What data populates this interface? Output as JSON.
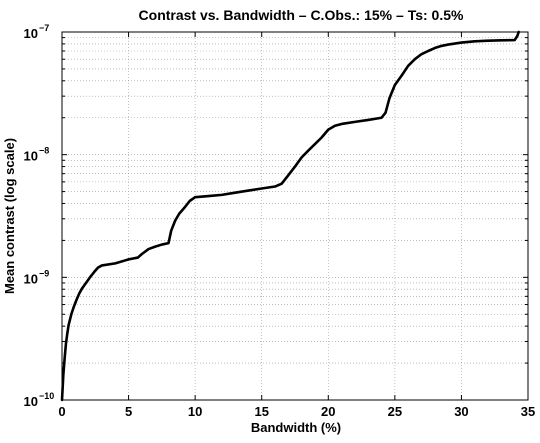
{
  "chart_data": {
    "type": "line",
    "title": "Contrast vs. Bandwidth – C.Obs.: 15% – Ts: 0.5%",
    "xlabel": "Bandwidth (%)",
    "ylabel": "Mean contrast (log scale)",
    "xlim": [
      0,
      35
    ],
    "ylim": [
      1e-10,
      1e-07
    ],
    "yscale": "log",
    "grid": true,
    "x_ticks": [
      {
        "value": 0,
        "label": "0"
      },
      {
        "value": 5,
        "label": "5"
      },
      {
        "value": 10,
        "label": "10"
      },
      {
        "value": 15,
        "label": "15"
      },
      {
        "value": 20,
        "label": "20"
      },
      {
        "value": 25,
        "label": "25"
      },
      {
        "value": 30,
        "label": "30"
      },
      {
        "value": 35,
        "label": "35"
      }
    ],
    "y_ticks": [
      {
        "value": 1e-10,
        "base": "10",
        "exp": "−10"
      },
      {
        "value": 1e-09,
        "base": "10",
        "exp": "−9"
      },
      {
        "value": 1e-08,
        "base": "10",
        "exp": "−8"
      },
      {
        "value": 1e-07,
        "base": "10",
        "exp": "−7"
      }
    ],
    "series": [
      {
        "color": "#000000",
        "x": [
          0.0,
          0.1,
          0.2,
          0.3,
          0.4,
          0.5,
          0.7,
          0.9,
          1.1,
          1.3,
          1.5,
          1.8,
          2.1,
          2.4,
          2.7,
          3.0,
          4.0,
          5.0,
          5.7,
          6.0,
          6.5,
          7.0,
          7.5,
          8.0,
          8.2,
          8.5,
          8.8,
          9.2,
          9.6,
          10.0,
          11.0,
          12.0,
          13.0,
          14.0,
          15.0,
          16.0,
          16.5,
          17.0,
          17.5,
          18.0,
          18.5,
          19.0,
          19.5,
          20.0,
          20.5,
          21.0,
          22.0,
          23.0,
          24.0,
          24.3,
          24.6,
          25.0,
          25.5,
          26.0,
          26.5,
          27.0,
          27.5,
          28.0,
          28.5,
          29.0,
          30.0,
          31.0,
          32.0,
          33.0,
          34.0,
          34.2,
          34.3
        ],
        "y": [
          1e-10,
          1.6e-10,
          2.2e-10,
          2.9e-10,
          3.5e-10,
          4.1e-10,
          5e-10,
          5.8e-10,
          6.6e-10,
          7.4e-10,
          8.1e-10,
          9e-10,
          1e-09,
          1.1e-09,
          1.2e-09,
          1.25e-09,
          1.3e-09,
          1.4e-09,
          1.45e-09,
          1.55e-09,
          1.7e-09,
          1.78e-09,
          1.85e-09,
          1.9e-09,
          2.4e-09,
          2.9e-09,
          3.3e-09,
          3.7e-09,
          4.2e-09,
          4.5e-09,
          4.6e-09,
          4.7e-09,
          4.9e-09,
          5.1e-09,
          5.3e-09,
          5.5e-09,
          5.8e-09,
          6.8e-09,
          8e-09,
          9.5e-09,
          1.08e-08,
          1.22e-08,
          1.38e-08,
          1.6e-08,
          1.72e-08,
          1.78e-08,
          1.85e-08,
          1.92e-08,
          2e-08,
          2.2e-08,
          2.9e-08,
          3.7e-08,
          4.4e-08,
          5.3e-08,
          6e-08,
          6.6e-08,
          7e-08,
          7.4e-08,
          7.7e-08,
          7.9e-08,
          8.2e-08,
          8.4e-08,
          8.5e-08,
          8.55e-08,
          8.6e-08,
          9.3e-08,
          1e-07
        ]
      }
    ]
  }
}
